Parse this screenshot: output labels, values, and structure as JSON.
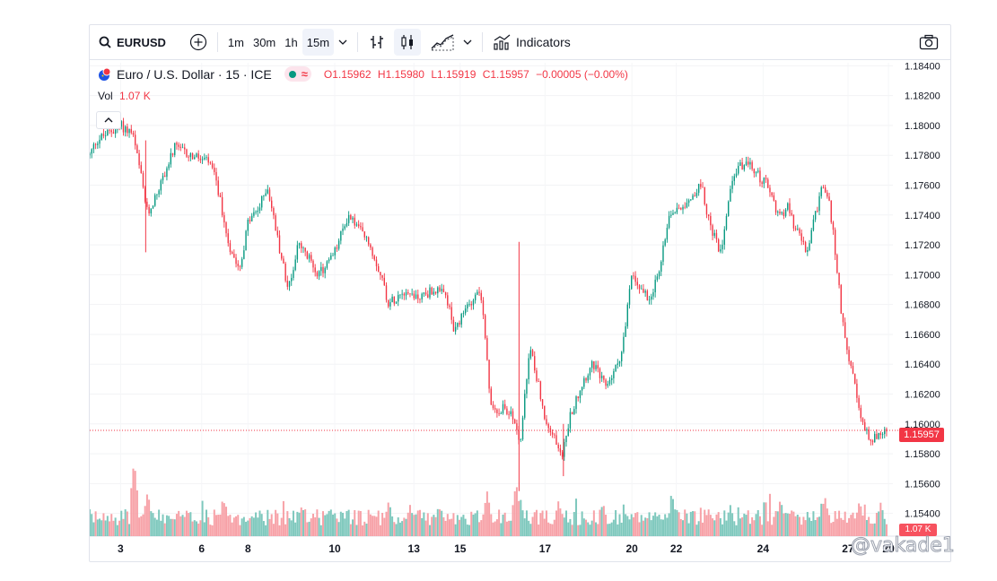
{
  "toolbar": {
    "symbol": "EURUSD",
    "intervals": [
      "1m",
      "30m",
      "1h",
      "15m"
    ],
    "active_interval": "15m",
    "indicators_label": "Indicators"
  },
  "legend": {
    "title": "Euro / U.S. Dollar · 15 · ICE",
    "open": "O1.15962",
    "high": "H1.15980",
    "low": "L1.15919",
    "close": "C1.15957",
    "change": "−0.00005 (−0.00%)"
  },
  "volume": {
    "label": "Vol",
    "value": "1.07 K"
  },
  "badges": {
    "price": "1.15957",
    "volume": "1.07 K"
  },
  "watermark": "@vakade1",
  "colors": {
    "up": "#089981",
    "down": "#f23645",
    "up_volume": "#7ec8bd",
    "down_volume": "#f7a1a7"
  },
  "chart_data": {
    "type": "candlestick",
    "symbol": "EURUSD",
    "interval": "15",
    "y_ticks": [
      "1.18400",
      "1.18200",
      "1.18000",
      "1.17800",
      "1.17600",
      "1.17400",
      "1.17200",
      "1.17000",
      "1.16800",
      "1.16600",
      "1.16400",
      "1.16200",
      "1.16000",
      "1.15800",
      "1.15600",
      "1.15400"
    ],
    "ylim": [
      1.1535,
      1.1842
    ],
    "x_ticks": [
      "3",
      "6",
      "8",
      "10",
      "13",
      "15",
      "17",
      "20",
      "22",
      "24",
      "27",
      "29"
    ],
    "last_price": 1.15957,
    "price_path": [
      [
        0,
        1.178
      ],
      [
        0.35,
        1.179
      ],
      [
        1.6,
        1.18
      ],
      [
        2.2,
        1.1795
      ],
      [
        2.6,
        1.177
      ],
      [
        3.0,
        1.174
      ],
      [
        3.8,
        1.1765
      ],
      [
        4.4,
        1.1785
      ],
      [
        5.2,
        1.178
      ],
      [
        6.2,
        1.1775
      ],
      [
        6.6,
        1.176
      ],
      [
        7.2,
        1.172
      ],
      [
        7.8,
        1.1705
      ],
      [
        8.2,
        1.1735
      ],
      [
        8.8,
        1.1745
      ],
      [
        9.2,
        1.176
      ],
      [
        9.8,
        1.172
      ],
      [
        10.3,
        1.169
      ],
      [
        10.8,
        1.172
      ],
      [
        11.4,
        1.171
      ],
      [
        11.9,
        1.17
      ],
      [
        12.7,
        1.1715
      ],
      [
        13.4,
        1.174
      ],
      [
        14.0,
        1.173
      ],
      [
        14.5,
        1.172
      ],
      [
        15.1,
        1.17
      ],
      [
        15.5,
        1.168
      ],
      [
        16.2,
        1.169
      ],
      [
        17.0,
        1.1685
      ],
      [
        17.9,
        1.169
      ],
      [
        18.5,
        1.1685
      ],
      [
        18.9,
        1.166
      ],
      [
        19.6,
        1.168
      ],
      [
        20.2,
        1.169
      ],
      [
        20.4,
        1.167
      ],
      [
        20.8,
        1.161
      ],
      [
        21.6,
        1.161
      ],
      [
        22.1,
        1.16
      ],
      [
        22.3,
        1.1585
      ],
      [
        22.8,
        1.165
      ],
      [
        23.0,
        1.164
      ],
      [
        23.3,
        1.1625
      ],
      [
        23.6,
        1.16
      ],
      [
        24.1,
        1.159
      ],
      [
        24.5,
        1.158
      ],
      [
        24.9,
        1.1605
      ],
      [
        25.6,
        1.163
      ],
      [
        26.1,
        1.164
      ],
      [
        26.7,
        1.1625
      ],
      [
        27.2,
        1.1635
      ],
      [
        27.6,
        1.165
      ],
      [
        28.1,
        1.17
      ],
      [
        28.6,
        1.169
      ],
      [
        29.0,
        1.1685
      ],
      [
        29.5,
        1.17
      ],
      [
        30.0,
        1.174
      ],
      [
        31.0,
        1.175
      ],
      [
        31.7,
        1.176
      ],
      [
        32.2,
        1.173
      ],
      [
        32.7,
        1.1715
      ],
      [
        33.2,
        1.176
      ],
      [
        33.6,
        1.1772
      ],
      [
        34.0,
        1.1775
      ],
      [
        34.4,
        1.177
      ],
      [
        35.1,
        1.176
      ],
      [
        35.7,
        1.174
      ],
      [
        36.2,
        1.1745
      ],
      [
        36.6,
        1.173
      ],
      [
        37.2,
        1.1715
      ],
      [
        37.6,
        1.174
      ],
      [
        38.0,
        1.176
      ],
      [
        38.3,
        1.175
      ],
      [
        38.6,
        1.172
      ],
      [
        39.0,
        1.167
      ],
      [
        39.5,
        1.1635
      ],
      [
        40.0,
        1.16
      ],
      [
        40.5,
        1.159
      ],
      [
        41.2,
        1.1594
      ],
      [
        41.3,
        1.1596
      ]
    ],
    "volume_spikes": [
      [
        2.3,
        0.85
      ],
      [
        3.0,
        0.5
      ],
      [
        7.0,
        0.4
      ],
      [
        11.0,
        0.35
      ],
      [
        15.5,
        0.4
      ],
      [
        16.6,
        0.35
      ],
      [
        20.6,
        0.5
      ],
      [
        22.1,
        0.6
      ],
      [
        22.3,
        0.45
      ],
      [
        24.3,
        0.4
      ],
      [
        26.6,
        0.38
      ],
      [
        30.2,
        0.45
      ],
      [
        33.2,
        0.35
      ],
      [
        35.8,
        0.42
      ],
      [
        38.1,
        0.45
      ],
      [
        39.9,
        0.4
      ],
      [
        41.0,
        0.38
      ]
    ]
  }
}
